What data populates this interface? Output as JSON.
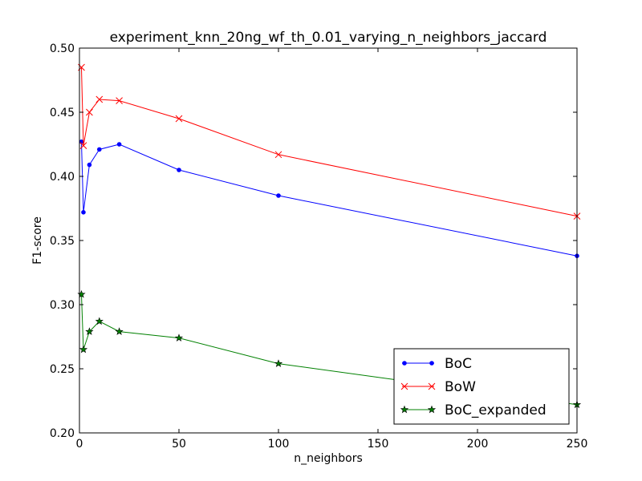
{
  "chart_data": {
    "type": "line",
    "title": "experiment_knn_20ng_wf_th_0.01_varying_n_neighbors_jaccard",
    "xlabel": "n_neighbors",
    "ylabel": "F1-score",
    "xlim": [
      0,
      250
    ],
    "ylim": [
      0.2,
      0.5
    ],
    "xticks": [
      0,
      50,
      100,
      150,
      200,
      250
    ],
    "yticks": [
      0.2,
      0.25,
      0.3,
      0.35,
      0.4,
      0.45,
      0.5
    ],
    "xtick_labels": [
      "0",
      "50",
      "100",
      "150",
      "200",
      "250"
    ],
    "ytick_labels": [
      "0.20",
      "0.25",
      "0.30",
      "0.35",
      "0.40",
      "0.45",
      "0.50"
    ],
    "grid": false,
    "legend_position": "lower-right",
    "x": [
      1,
      2,
      5,
      10,
      20,
      50,
      100,
      250
    ],
    "series": [
      {
        "name": "BoC",
        "color": "#0000ff",
        "marker": "dot",
        "values": [
          0.427,
          0.372,
          0.409,
          0.421,
          0.425,
          0.405,
          0.385,
          0.338
        ]
      },
      {
        "name": "BoW",
        "color": "#ff0000",
        "marker": "x",
        "values": [
          0.485,
          0.424,
          0.45,
          0.46,
          0.459,
          0.445,
          0.417,
          0.369
        ]
      },
      {
        "name": "BoC_expanded",
        "color": "#008000",
        "marker": "star",
        "values": [
          0.308,
          0.265,
          0.279,
          0.287,
          0.279,
          0.274,
          0.254,
          0.222
        ]
      }
    ]
  }
}
